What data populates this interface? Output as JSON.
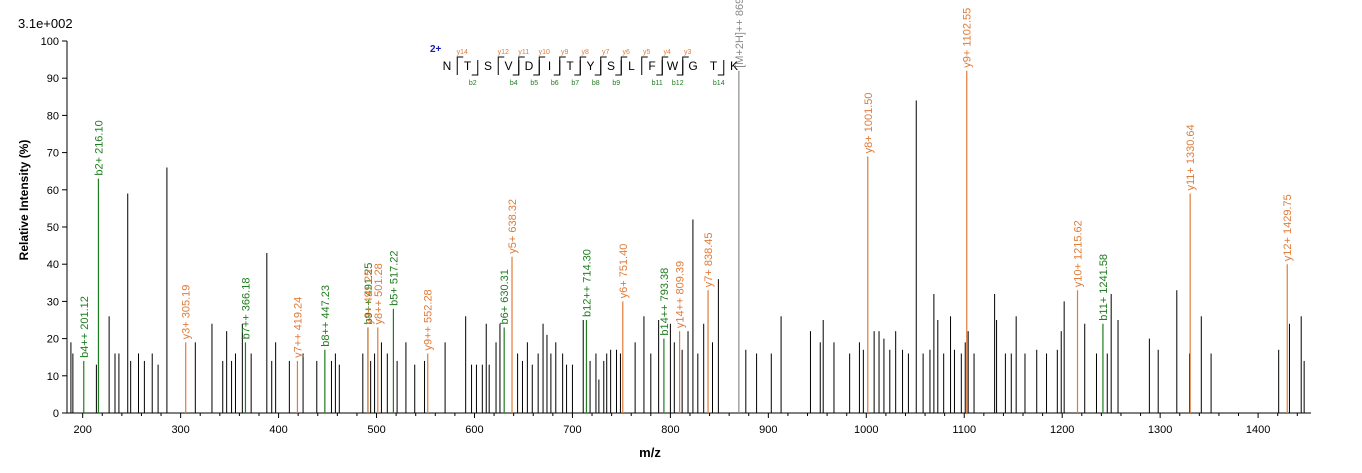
{
  "chart_data": {
    "type": "bar",
    "max_intensity_label": "3.1e+002",
    "xlabel": "m/z",
    "ylabel": "Relative   Intensity (%)",
    "xlim": [
      184,
      1454
    ],
    "ylim": [
      0,
      100
    ],
    "x_ticks": [
      200,
      300,
      400,
      500,
      600,
      700,
      800,
      900,
      1000,
      1100,
      1200,
      1300,
      1400
    ],
    "y_ticks": [
      0,
      10,
      20,
      30,
      40,
      50,
      60,
      70,
      80,
      90,
      100
    ],
    "colors": {
      "b": "#1e7d1e",
      "y": "#e07b39",
      "unmatched": "#000000",
      "precursor": "#8a8a8a",
      "charge": "#1a1ab0"
    },
    "annotated_peaks": [
      {
        "ion": "b",
        "mz": 201.12,
        "intensity": 14,
        "label": "b4++ 201.12"
      },
      {
        "ion": "b",
        "mz": 216.1,
        "intensity": 63,
        "label": "b2+ 216.10"
      },
      {
        "ion": "y",
        "mz": 305.19,
        "intensity": 19,
        "label": "y3+ 305.19"
      },
      {
        "ion": "b",
        "mz": 366.18,
        "intensity": 19,
        "label": "b7++ 366.18"
      },
      {
        "ion": "y",
        "mz": 419.24,
        "intensity": 14,
        "label": "y7++ 419.24"
      },
      {
        "ion": "b",
        "mz": 447.23,
        "intensity": 17,
        "label": "b8++ 447.23"
      },
      {
        "ion": "b",
        "mz": 491.25,
        "intensity": 23,
        "label": "b9++ 491.25"
      },
      {
        "ion": "y",
        "mz": 491.25,
        "intensity": 23,
        "label": "y4+ 491.25"
      },
      {
        "ion": "y",
        "mz": 501.28,
        "intensity": 23,
        "label": "y8++ 501.28"
      },
      {
        "ion": "b",
        "mz": 517.22,
        "intensity": 28,
        "label": "b5+ 517.22"
      },
      {
        "ion": "y",
        "mz": 552.28,
        "intensity": 16,
        "label": "y9++ 552.28"
      },
      {
        "ion": "b",
        "mz": 630.31,
        "intensity": 23,
        "label": "b6+ 630.31"
      },
      {
        "ion": "y",
        "mz": 638.32,
        "intensity": 42,
        "label": "y5+ 638.32"
      },
      {
        "ion": "b",
        "mz": 714.3,
        "intensity": 25,
        "label": "b12++ 714.30"
      },
      {
        "ion": "y",
        "mz": 751.4,
        "intensity": 30,
        "label": "y6+ 751.40"
      },
      {
        "ion": "b",
        "mz": 793.38,
        "intensity": 20,
        "label": "b14++ 793.38"
      },
      {
        "ion": "y",
        "mz": 809.39,
        "intensity": 22,
        "label": "y14++ 809.39"
      },
      {
        "ion": "y",
        "mz": 838.45,
        "intensity": 33,
        "label": "y7+ 838.45"
      },
      {
        "ion": "p",
        "mz": 869.9,
        "intensity": 92,
        "label": "[M+2H]++ 869"
      },
      {
        "ion": "y",
        "mz": 1001.5,
        "intensity": 69,
        "label": "y8+ 1001.50"
      },
      {
        "ion": "y",
        "mz": 1102.55,
        "intensity": 92,
        "label": "y9+ 1102.55"
      },
      {
        "ion": "y",
        "mz": 1215.62,
        "intensity": 33,
        "label": "y10+ 1215.62"
      },
      {
        "ion": "b",
        "mz": 1241.58,
        "intensity": 24,
        "label": "b11+ 1241.58"
      },
      {
        "ion": "y",
        "mz": 1330.64,
        "intensity": 59,
        "label": "y11+ 1330.64"
      },
      {
        "ion": "y",
        "mz": 1429.75,
        "intensity": 40,
        "label": "y12+ 1429.75"
      }
    ],
    "unmatched_peaks": [
      [
        188,
        19
      ],
      [
        190,
        16
      ],
      [
        214,
        13
      ],
      [
        227,
        26
      ],
      [
        233,
        16
      ],
      [
        237,
        16
      ],
      [
        246,
        59
      ],
      [
        249,
        14
      ],
      [
        257,
        16
      ],
      [
        263,
        14
      ],
      [
        271,
        16
      ],
      [
        277,
        13
      ],
      [
        286,
        66
      ],
      [
        315,
        19
      ],
      [
        332,
        24
      ],
      [
        343,
        14
      ],
      [
        347,
        22
      ],
      [
        352,
        14
      ],
      [
        356,
        16
      ],
      [
        363,
        24
      ],
      [
        372,
        16
      ],
      [
        388,
        43
      ],
      [
        393,
        14
      ],
      [
        397,
        19
      ],
      [
        411,
        14
      ],
      [
        425,
        16
      ],
      [
        439,
        14
      ],
      [
        454,
        14
      ],
      [
        458,
        16
      ],
      [
        462,
        13
      ],
      [
        486,
        16
      ],
      [
        494,
        14
      ],
      [
        498,
        16
      ],
      [
        505,
        19
      ],
      [
        511,
        16
      ],
      [
        521,
        14
      ],
      [
        530,
        19
      ],
      [
        539,
        13
      ],
      [
        549,
        14
      ],
      [
        570,
        19
      ],
      [
        591,
        26
      ],
      [
        597,
        13
      ],
      [
        602,
        13
      ],
      [
        608,
        13
      ],
      [
        612,
        24
      ],
      [
        615,
        13
      ],
      [
        622,
        19
      ],
      [
        626,
        24
      ],
      [
        644,
        16
      ],
      [
        649,
        14
      ],
      [
        654,
        19
      ],
      [
        659,
        13
      ],
      [
        665,
        16
      ],
      [
        670,
        24
      ],
      [
        674,
        21
      ],
      [
        678,
        16
      ],
      [
        683,
        19
      ],
      [
        690,
        16
      ],
      [
        694,
        13
      ],
      [
        700,
        13
      ],
      [
        711,
        25
      ],
      [
        718,
        14
      ],
      [
        724,
        16
      ],
      [
        727,
        9
      ],
      [
        732,
        14
      ],
      [
        735,
        16
      ],
      [
        739,
        17
      ],
      [
        745,
        17
      ],
      [
        749,
        16
      ],
      [
        764,
        19
      ],
      [
        773,
        26
      ],
      [
        780,
        16
      ],
      [
        788,
        25
      ],
      [
        800,
        24
      ],
      [
        804,
        19
      ],
      [
        812,
        17
      ],
      [
        818,
        22
      ],
      [
        823,
        52
      ],
      [
        828,
        16
      ],
      [
        834,
        24
      ],
      [
        843,
        19
      ],
      [
        849,
        36
      ],
      [
        877,
        17
      ],
      [
        888,
        16
      ],
      [
        903,
        16
      ],
      [
        913,
        26
      ],
      [
        943,
        22
      ],
      [
        953,
        19
      ],
      [
        956,
        25
      ],
      [
        967,
        19
      ],
      [
        983,
        16
      ],
      [
        993,
        19
      ],
      [
        997,
        17
      ],
      [
        1008,
        22
      ],
      [
        1013,
        22
      ],
      [
        1018,
        20
      ],
      [
        1024,
        17
      ],
      [
        1030,
        22
      ],
      [
        1037,
        17
      ],
      [
        1043,
        16
      ],
      [
        1051,
        84
      ],
      [
        1058,
        16
      ],
      [
        1065,
        17
      ],
      [
        1069,
        32
      ],
      [
        1073,
        25
      ],
      [
        1079,
        16
      ],
      [
        1086,
        26
      ],
      [
        1090,
        17
      ],
      [
        1097,
        16
      ],
      [
        1101,
        19
      ],
      [
        1104,
        22
      ],
      [
        1110,
        16
      ],
      [
        1131,
        32
      ],
      [
        1133,
        25
      ],
      [
        1142,
        16
      ],
      [
        1148,
        16
      ],
      [
        1153,
        26
      ],
      [
        1162,
        16
      ],
      [
        1174,
        17
      ],
      [
        1184,
        16
      ],
      [
        1195,
        17
      ],
      [
        1199,
        22
      ],
      [
        1202,
        30
      ],
      [
        1223,
        24
      ],
      [
        1235,
        16
      ],
      [
        1246,
        16
      ],
      [
        1250,
        32
      ],
      [
        1257,
        25
      ],
      [
        1289,
        20
      ],
      [
        1298,
        17
      ],
      [
        1317,
        33
      ],
      [
        1330,
        16
      ],
      [
        1342,
        26
      ],
      [
        1352,
        16
      ],
      [
        1421,
        17
      ],
      [
        1432,
        24
      ],
      [
        1444,
        26
      ],
      [
        1447,
        14
      ]
    ],
    "sequence": {
      "charge": "2+",
      "residues": [
        "N",
        "T",
        "S",
        "V",
        "D",
        "I",
        "T",
        "Y",
        "S",
        "L",
        "F",
        "W",
        "G",
        "T",
        "K"
      ],
      "y_ions": [
        {
          "after": 1,
          "label": "y14"
        },
        {
          "after": 3,
          "label": "y12"
        },
        {
          "after": 4,
          "label": "y11"
        },
        {
          "after": 5,
          "label": "y10"
        },
        {
          "after": 6,
          "label": "y9"
        },
        {
          "after": 7,
          "label": "y8"
        },
        {
          "after": 8,
          "label": "y7"
        },
        {
          "after": 9,
          "label": "y6"
        },
        {
          "after": 10,
          "label": "y5"
        },
        {
          "after": 11,
          "label": "y4"
        },
        {
          "after": 12,
          "label": "y3"
        }
      ],
      "b_ions": [
        {
          "after": 2,
          "label": "b2"
        },
        {
          "after": 4,
          "label": "b4"
        },
        {
          "after": 5,
          "label": "b5"
        },
        {
          "after": 6,
          "label": "b6"
        },
        {
          "after": 7,
          "label": "b7"
        },
        {
          "after": 8,
          "label": "b8"
        },
        {
          "after": 9,
          "label": "b9"
        },
        {
          "after": 11,
          "label": "b11"
        },
        {
          "after": 12,
          "label": "b12"
        },
        {
          "after": 14,
          "label": "b14"
        }
      ]
    }
  }
}
